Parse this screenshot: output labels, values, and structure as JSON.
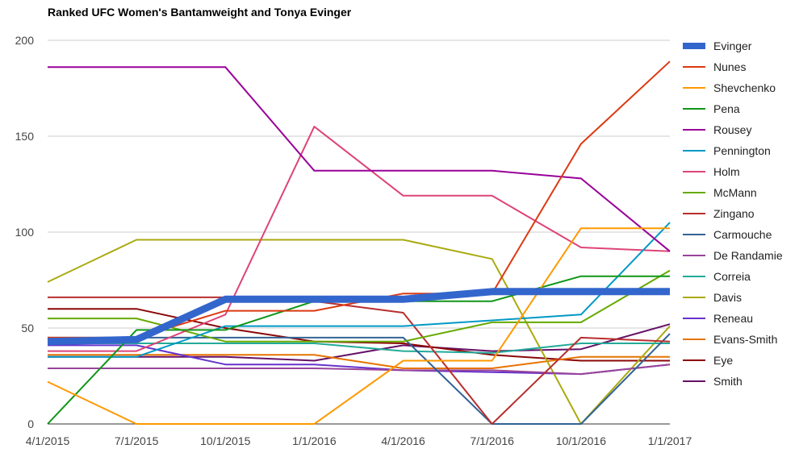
{
  "chart_data": {
    "type": "line",
    "title": "Ranked UFC Women's Bantamweight and Tonya Evinger",
    "xlabel": "",
    "ylabel": "",
    "x": [
      "4/1/2015",
      "7/1/2015",
      "10/1/2015",
      "1/1/2016",
      "4/1/2016",
      "7/1/2016",
      "10/1/2016",
      "1/1/2017"
    ],
    "ylim": [
      0,
      200
    ],
    "yticks": [
      0,
      50,
      100,
      150,
      200
    ],
    "legend_position": "right",
    "grid": true,
    "series": [
      {
        "name": "Evinger",
        "color": "#3366cc",
        "bold": true,
        "values": [
          43,
          44,
          65,
          65,
          65,
          69,
          69,
          69
        ]
      },
      {
        "name": "Nunes",
        "color": "#dc3912",
        "values": [
          45,
          45,
          59,
          59,
          68,
          68,
          146,
          189
        ]
      },
      {
        "name": "Shevchenko",
        "color": "#ff9900",
        "values": [
          22,
          0,
          0,
          0,
          33,
          33,
          102,
          102
        ]
      },
      {
        "name": "Pena",
        "color": "#109618",
        "values": [
          0,
          49,
          49,
          64,
          64,
          64,
          77,
          77
        ]
      },
      {
        "name": "Rousey",
        "color": "#990099",
        "values": [
          186,
          186,
          186,
          132,
          132,
          132,
          128,
          90
        ]
      },
      {
        "name": "Pennington",
        "color": "#0099c6",
        "values": [
          35,
          35,
          51,
          51,
          51,
          54,
          57,
          105
        ]
      },
      {
        "name": "Holm",
        "color": "#dd4477",
        "values": [
          38,
          38,
          57,
          155,
          119,
          119,
          92,
          90
        ]
      },
      {
        "name": "McMann",
        "color": "#66aa00",
        "values": [
          55,
          55,
          43,
          43,
          43,
          53,
          53,
          80
        ]
      },
      {
        "name": "Zingano",
        "color": "#b82e2e",
        "values": [
          66,
          66,
          66,
          64,
          58,
          0,
          45,
          43
        ]
      },
      {
        "name": "Carmouche",
        "color": "#316395",
        "values": [
          45,
          45,
          45,
          45,
          45,
          0,
          0,
          47
        ]
      },
      {
        "name": "De Randamie",
        "color": "#994499",
        "values": [
          29,
          29,
          29,
          29,
          28,
          28,
          26,
          31
        ]
      },
      {
        "name": "Correia",
        "color": "#22aa99",
        "values": [
          42,
          42,
          42,
          42,
          38,
          37,
          42,
          42
        ]
      },
      {
        "name": "Davis",
        "color": "#aaaa11",
        "values": [
          74,
          96,
          96,
          96,
          96,
          86,
          0,
          51
        ]
      },
      {
        "name": "Reneau",
        "color": "#6633cc",
        "values": [
          41,
          41,
          31,
          31,
          28,
          27,
          26,
          31
        ]
      },
      {
        "name": "Evans-Smith",
        "color": "#e67300",
        "values": [
          36,
          36,
          36,
          36,
          29,
          29,
          35,
          35
        ]
      },
      {
        "name": "Eye",
        "color": "#8b0707",
        "values": [
          60,
          60,
          50,
          43,
          42,
          36,
          33,
          33
        ]
      },
      {
        "name": "Smith",
        "color": "#651067",
        "values": [
          35,
          35,
          35,
          33,
          41,
          38,
          39,
          52
        ]
      }
    ]
  }
}
